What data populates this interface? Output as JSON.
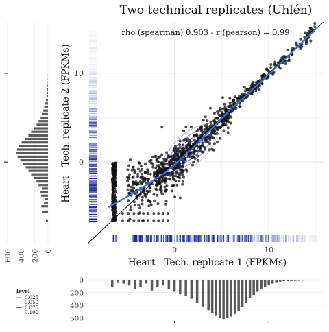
{
  "chart_data": {
    "type": "scatter",
    "title": "Two technical replicates (Uhlén)",
    "subtitle": "rho (spearman) 0.903  -  r (pearson) = 0.99",
    "xlabel": "Heart - Tech. replicate 1  (FPKMs)",
    "ylabel": "Heart - Tech. replicate 2  (FPKMs)",
    "x_ticks": [
      0,
      10
    ],
    "y_ticks": [
      0,
      10
    ],
    "xlim": [
      -9.2,
      15.8
    ],
    "ylim": [
      -9.2,
      15.8
    ],
    "identity_line": true,
    "fit_line": [
      [
        -7,
        -5.1
      ],
      [
        -4,
        -3.3
      ],
      [
        -1,
        -1.2
      ],
      [
        0,
        -0.3
      ],
      [
        2,
        1.6
      ],
      [
        4,
        3.8
      ],
      [
        6,
        6.0
      ],
      [
        8,
        7.9
      ],
      [
        10,
        9.9
      ],
      [
        12,
        11.9
      ],
      [
        14,
        14.0
      ],
      [
        15.2,
        15.2
      ]
    ],
    "floor_value": -6.6,
    "density_legend": {
      "title": "level",
      "levels": [
        "0.025",
        "0.050",
        "0.075",
        "0.100"
      ]
    },
    "top_marginal_histogram": {
      "orientation": "vertical-bars",
      "y_ticks": [
        0,
        200,
        400,
        600
      ],
      "bins_x": [
        -6.6,
        -6.0,
        -5.4,
        -4.8,
        -4.2,
        -3.6,
        -3.0,
        -2.4,
        -1.8,
        -1.2,
        -0.6,
        0.0,
        0.6,
        1.2,
        1.8,
        2.4,
        3.0,
        3.6,
        4.0,
        4.4,
        4.8,
        5.2,
        5.6,
        6.0,
        6.4,
        6.8,
        7.2,
        7.6,
        8.0,
        8.4,
        8.8,
        9.2,
        9.6,
        10.0,
        10.4,
        10.8,
        11.2,
        11.6,
        12.0,
        12.4,
        12.8,
        13.2,
        13.6
      ],
      "counts": [
        120,
        40,
        60,
        90,
        150,
        110,
        60,
        170,
        110,
        90,
        150,
        180,
        230,
        250,
        300,
        360,
        420,
        480,
        520,
        560,
        600,
        620,
        600,
        580,
        540,
        490,
        430,
        360,
        290,
        240,
        180,
        140,
        110,
        80,
        60,
        40,
        30,
        20,
        15,
        10,
        8,
        5,
        3
      ]
    },
    "left_marginal_histogram": {
      "orientation": "horizontal-bars",
      "x_ticks": [
        600,
        400,
        200,
        0
      ],
      "bins_y": [
        -6.6,
        -5.6,
        -5.0,
        -4.6,
        -4.2,
        -3.8,
        -3.4,
        -3.0,
        -2.6,
        -2.2,
        -1.8,
        -1.4,
        -1.0,
        -0.6,
        -0.2,
        0.2,
        0.6,
        1.0,
        1.4,
        1.8,
        2.2,
        2.6,
        3.0,
        3.4,
        3.8,
        4.2,
        4.6,
        5.0,
        5.4,
        5.8,
        6.2,
        6.6,
        7.0,
        7.4,
        7.8,
        8.2,
        8.6,
        9.0,
        9.4,
        9.8
      ],
      "counts": [
        30,
        80,
        100,
        60,
        40,
        100,
        120,
        80,
        140,
        170,
        210,
        250,
        290,
        330,
        370,
        410,
        450,
        470,
        460,
        430,
        390,
        340,
        290,
        250,
        210,
        170,
        140,
        110,
        90,
        70,
        55,
        40,
        30,
        22,
        15,
        10,
        8,
        5,
        3,
        2
      ]
    }
  }
}
